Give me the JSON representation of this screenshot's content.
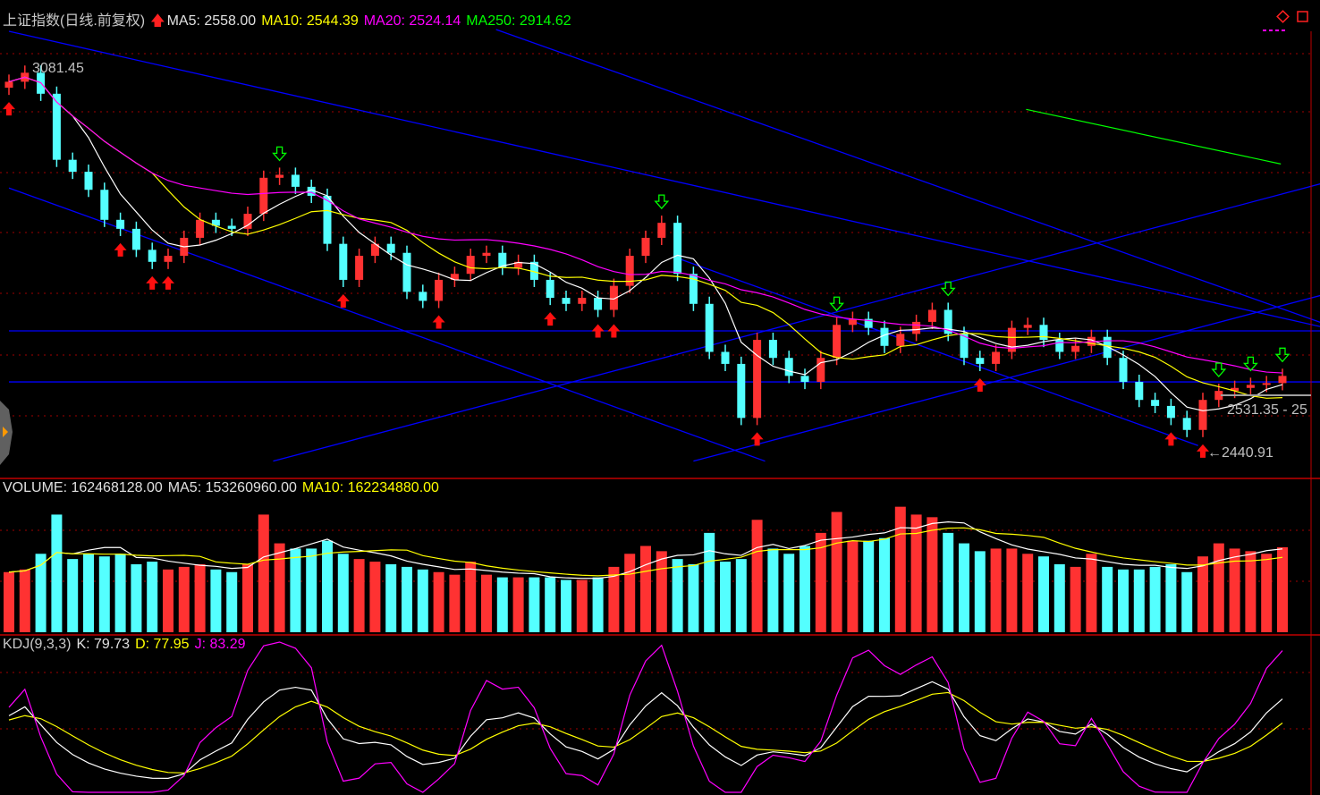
{
  "header": {
    "title": "上证指数(日线.前复权)",
    "ma5": "MA5: 2558.00",
    "ma10": "MA10: 2544.39",
    "ma20": "MA20: 2524.14",
    "ma250": "MA250: 2914.62"
  },
  "volume_header": {
    "volume": "VOLUME: 162468128.00",
    "ma5": "MA5: 153260960.00",
    "ma10": "MA10: 162234880.00"
  },
  "kdj_header": {
    "name": "KDJ(9,3,3)",
    "k": "K: 79.73",
    "d": "D: 77.95",
    "j": "J: 83.29"
  },
  "annotations": {
    "high_label": "3081.45",
    "low_label": "←2440.91",
    "range_label": "2531.35 - 25"
  },
  "colors": {
    "up": "#ff3232",
    "down": "#54ffff",
    "ma5": "#ffffff",
    "ma10": "#ffff00",
    "ma20": "#ff00ff",
    "ma250": "#00ff00",
    "trendline": "#0000ff",
    "grid": "#a00000"
  },
  "chart_data": {
    "type": "candlestick",
    "price": {
      "open": [
        3050,
        3060,
        3075,
        3040,
        2930,
        2910,
        2880,
        2830,
        2815,
        2780,
        2760,
        2770,
        2800,
        2830,
        2820,
        2815,
        2840,
        2900,
        2905,
        2885,
        2870,
        2790,
        2730,
        2770,
        2790,
        2775,
        2710,
        2695,
        2730,
        2740,
        2770,
        2775,
        2750,
        2760,
        2730,
        2700,
        2690,
        2700,
        2680,
        2720,
        2770,
        2800,
        2825,
        2740,
        2690,
        2610,
        2590,
        2500,
        2630,
        2600,
        2570,
        2560,
        2600,
        2655,
        2665,
        2650,
        2620,
        2640,
        2660,
        2680,
        2640,
        2600,
        2590,
        2610,
        2650,
        2655,
        2630,
        2610,
        2620,
        2635,
        2600,
        2560,
        2530,
        2520,
        2500,
        2480,
        2530,
        2545,
        2550,
        2555,
        2558
      ],
      "close": [
        3060,
        3075,
        3040,
        2930,
        2910,
        2880,
        2830,
        2815,
        2780,
        2760,
        2770,
        2800,
        2830,
        2820,
        2815,
        2840,
        2900,
        2905,
        2885,
        2870,
        2790,
        2730,
        2770,
        2790,
        2775,
        2710,
        2695,
        2730,
        2740,
        2770,
        2775,
        2750,
        2760,
        2730,
        2700,
        2690,
        2700,
        2680,
        2720,
        2770,
        2800,
        2825,
        2740,
        2690,
        2610,
        2590,
        2500,
        2630,
        2600,
        2570,
        2560,
        2600,
        2655,
        2665,
        2650,
        2620,
        2640,
        2660,
        2680,
        2640,
        2600,
        2590,
        2610,
        2650,
        2655,
        2630,
        2610,
        2620,
        2635,
        2600,
        2560,
        2530,
        2520,
        2500,
        2480,
        2530,
        2545,
        2550,
        2555,
        2558,
        2570
      ],
      "high_value": 3081.45,
      "low_value": 2440.91,
      "buy_signals": [
        0,
        7,
        9,
        10,
        21,
        27,
        34,
        37,
        38,
        47,
        61,
        73,
        75
      ],
      "sell_signals": [
        17,
        41,
        52,
        59,
        76,
        78,
        80
      ],
      "trendlines": [
        [
          [
            0,
            3144
          ],
          [
            82.4,
            2652
          ]
        ],
        [
          [
            0,
            2883
          ],
          [
            47.5,
            2428
          ]
        ],
        [
          [
            30.6,
            3147
          ],
          [
            82.4,
            2659
          ]
        ],
        [
          [
            16.6,
            2428
          ],
          [
            82.4,
            2890
          ]
        ],
        [
          [
            43,
            2428
          ],
          [
            82.4,
            2704
          ]
        ],
        [
          [
            42,
            2766
          ],
          [
            74.7,
            2454
          ]
        ],
        [
          [
            0,
            2645
          ],
          [
            82.4,
            2645
          ]
        ],
        [
          [
            0,
            2560
          ],
          [
            82.4,
            2560
          ]
        ]
      ],
      "ma250_segment": [
        [
          63.9,
          3014
        ],
        [
          79.9,
          2923
        ]
      ]
    },
    "volume": [
      115000000,
      120000000,
      150000000,
      225000000,
      140000000,
      150000000,
      145000000,
      150000000,
      130000000,
      135000000,
      120000000,
      125000000,
      130000000,
      120000000,
      115000000,
      130000000,
      225000000,
      170000000,
      160000000,
      160000000,
      175000000,
      150000000,
      140000000,
      135000000,
      130000000,
      125000000,
      120000000,
      115000000,
      110000000,
      135000000,
      110000000,
      105000000,
      105000000,
      105000000,
      105000000,
      100000000,
      100000000,
      105000000,
      125000000,
      150000000,
      165000000,
      155000000,
      140000000,
      130000000,
      190000000,
      135000000,
      140000000,
      215000000,
      160000000,
      150000000,
      165000000,
      190000000,
      230000000,
      175000000,
      175000000,
      180000000,
      240000000,
      225000000,
      220000000,
      190000000,
      170000000,
      155000000,
      160000000,
      160000000,
      150000000,
      145000000,
      130000000,
      125000000,
      150000000,
      125000000,
      120000000,
      120000000,
      125000000,
      130000000,
      115000000,
      145000000,
      170000000,
      160000000,
      155000000,
      150000000,
      162468128
    ]
  }
}
